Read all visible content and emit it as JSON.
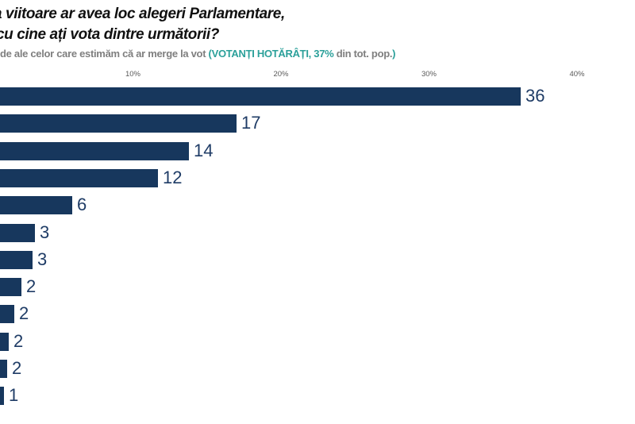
{
  "title": {
    "line1_clipped_prefix": "a ",
    "line1": "viitoare ar avea loc alegeri Parlamentare,",
    "line2": "cu cine ați vota dintre următorii?"
  },
  "subtitle": {
    "part1_gray": "de ale celor care estimăm că ar merge la vot ",
    "part2_teal": "(VOTANȚI HOTĂRÂȚI, 37%",
    "part3_gray": " din tot. pop.",
    "part4_teal": ")"
  },
  "colors": {
    "bar": "#17375D",
    "value_label": "#1F3C66",
    "teal_accent": "#2BA09A",
    "subtitle_gray": "#7F7F7F",
    "axis_label_gray": "#595959",
    "background": "#FFFFFF"
  },
  "chart_data": {
    "type": "bar",
    "orientation": "horizontal",
    "title": "viitoare ar avea loc alegeri Parlamentare, cu cine ați vota dintre următorii?",
    "subtitle": "de ale celor care estimăm că ar merge la vot (VOTANȚI HOTĂRÂȚI, 37% din tot. pop.)",
    "values": [
      36,
      17,
      14,
      12,
      6,
      3,
      3,
      2,
      2,
      2,
      2,
      1
    ],
    "values_precise_est": [
      36.2,
      17.0,
      13.8,
      11.7,
      5.9,
      3.4,
      3.2,
      2.45,
      2.0,
      1.6,
      1.5,
      1.3
    ],
    "categories_visible": false,
    "categories_note": "category (party) labels are cropped outside the left edge of the screenshot",
    "x_ticks": [
      "10%",
      "20%",
      "30%",
      "40%"
    ],
    "x_tick_values": [
      10,
      20,
      30,
      40
    ],
    "xlim": [
      0,
      42
    ],
    "ylabel": "",
    "xlabel": "",
    "grid": false,
    "legend": false,
    "axis_position": "top",
    "left_edge_cropped": true
  }
}
